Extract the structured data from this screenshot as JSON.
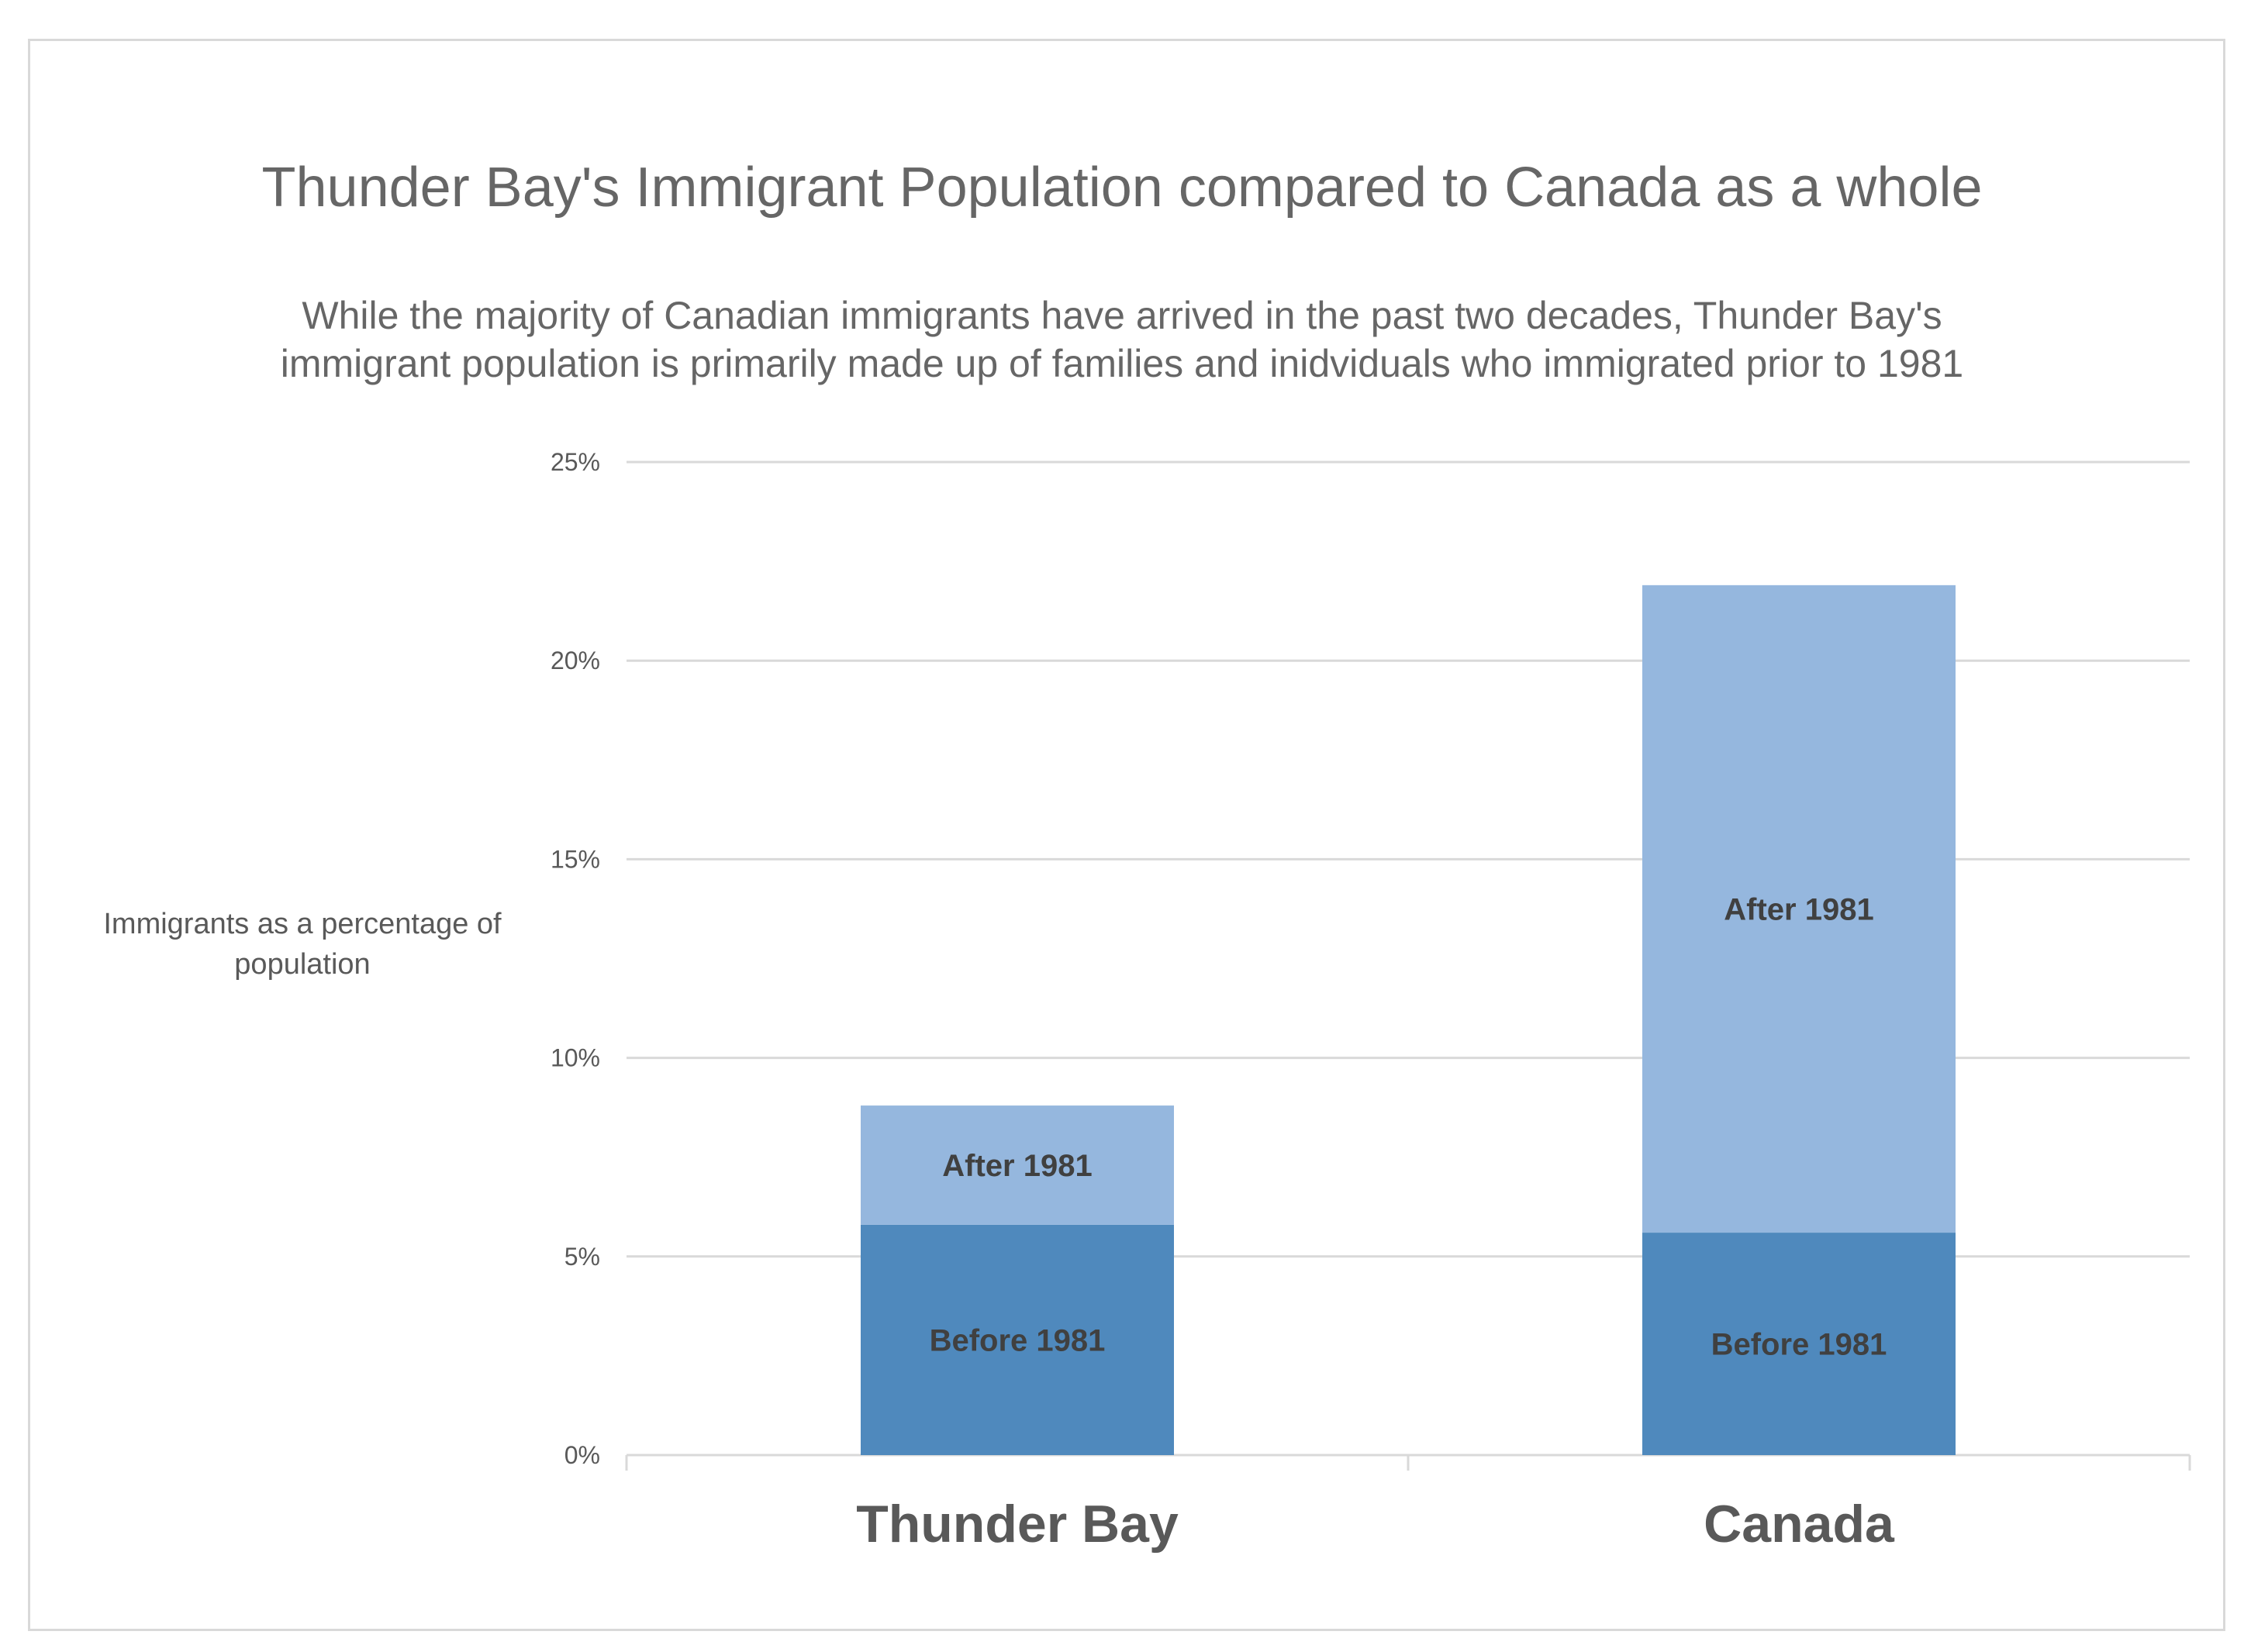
{
  "chart_data": {
    "type": "bar",
    "stacked": true,
    "title": "Thunder Bay's Immigrant Population compared to Canada as a whole",
    "subtitle": "While the majority of Canadian immigrants have arrived in the past two decades, Thunder Bay's immigrant population is primarily made up of families and inidviduals who immigrated prior to 1981",
    "xlabel": "",
    "ylabel": "Immigrants as a percentage of population",
    "ylim": [
      0,
      25
    ],
    "yticks": [
      "0%",
      "5%",
      "10%",
      "15%",
      "20%",
      "25%"
    ],
    "ytick_values": [
      0,
      5,
      10,
      15,
      20,
      25
    ],
    "categories": [
      "Thunder Bay",
      "Canada"
    ],
    "series": [
      {
        "name": "Before 1981",
        "values": [
          5.8,
          5.6
        ],
        "color": "#4f89bd"
      },
      {
        "name": "After 1981",
        "values": [
          3.0,
          16.3
        ],
        "color": "#95b7de"
      }
    ],
    "grid": true,
    "legend": "none (segments labeled inline)"
  },
  "colors": {
    "text": "#666666",
    "gridline": "#d9d9d9",
    "before_1981": "#4f89bd",
    "after_1981": "#95b7de"
  }
}
